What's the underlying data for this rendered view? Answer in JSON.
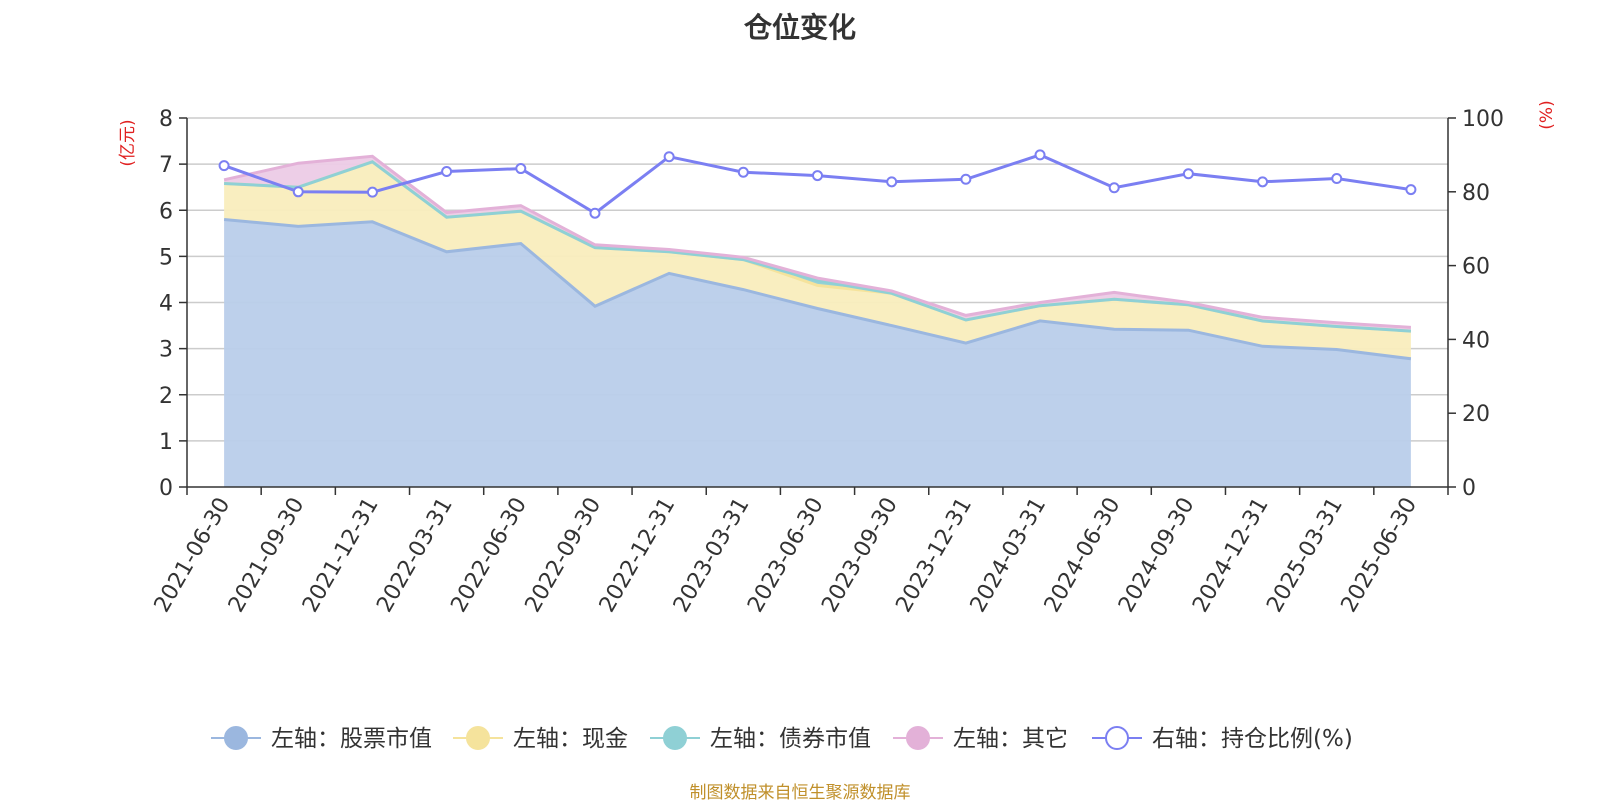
{
  "footer": "制图数据来自恒生聚源数据库",
  "colors": {
    "stock": "#9bb7df",
    "stock_fill": "#b9cdea",
    "cash": "#f5e39c",
    "cash_fill": "#f9edbd",
    "bond": "#8fd0d5",
    "other": "#e3b1d8",
    "other_fill": "#eccbe6",
    "ratio": "#7b7ff2",
    "axis_unit": "#e02020",
    "grid": "#cccccc",
    "axis": "#333333"
  },
  "chart_data": {
    "type": "area",
    "title": "仓位变化",
    "y_left_unit": "(亿元)",
    "y_right_unit": "(%)",
    "ylim_left": [
      0,
      8
    ],
    "ylim_right": [
      0,
      100
    ],
    "yticks_left": [
      "0",
      "1",
      "2",
      "3",
      "4",
      "5",
      "6",
      "7",
      "8"
    ],
    "yticks_right": [
      "0",
      "20",
      "40",
      "60",
      "80",
      "100"
    ],
    "grid": true,
    "legend_position": "bottom",
    "categories": [
      "2021-06-30",
      "2021-09-30",
      "2021-12-31",
      "2022-03-31",
      "2022-06-30",
      "2022-09-30",
      "2022-12-31",
      "2023-03-31",
      "2023-06-30",
      "2023-09-30",
      "2023-12-31",
      "2024-03-31",
      "2024-06-30",
      "2024-09-30",
      "2024-12-31",
      "2025-03-31",
      "2025-06-30"
    ],
    "series": [
      {
        "name": "左轴：股票市值",
        "axis": "left",
        "stacked": true,
        "values": [
          5.8,
          5.65,
          5.75,
          5.1,
          5.28,
          3.92,
          4.63,
          4.28,
          3.87,
          3.5,
          3.12,
          3.6,
          3.42,
          3.4,
          3.05,
          2.98,
          2.78
        ]
      },
      {
        "name": "左轴：现金",
        "axis": "left",
        "stacked": true,
        "values": [
          0.78,
          0.85,
          1.3,
          0.75,
          0.7,
          1.27,
          0.47,
          0.65,
          0.5,
          0.7,
          0.5,
          0.33,
          0.65,
          0.55,
          0.55,
          0.5,
          0.6
        ]
      },
      {
        "name": "左轴：债券市值",
        "axis": "left",
        "stacked": true,
        "values": [
          0,
          0,
          0,
          0,
          0,
          0,
          0,
          0,
          0.1,
          0,
          0,
          0,
          0,
          0,
          0,
          0,
          0
        ]
      },
      {
        "name": "左轴：其它",
        "axis": "left",
        "stacked": true,
        "values": [
          0.08,
          0.52,
          0.12,
          0.1,
          0.12,
          0.06,
          0.05,
          0.05,
          0.06,
          0.05,
          0.1,
          0.07,
          0.15,
          0.05,
          0.08,
          0.08,
          0.08
        ]
      },
      {
        "name": "右轴：持仓比例(%)",
        "axis": "right",
        "values": [
          87.1,
          80.0,
          79.9,
          85.5,
          86.3,
          74.2,
          89.5,
          85.3,
          84.4,
          82.7,
          83.4,
          90.0,
          81.1,
          84.9,
          82.7,
          83.6,
          80.6
        ]
      }
    ]
  }
}
